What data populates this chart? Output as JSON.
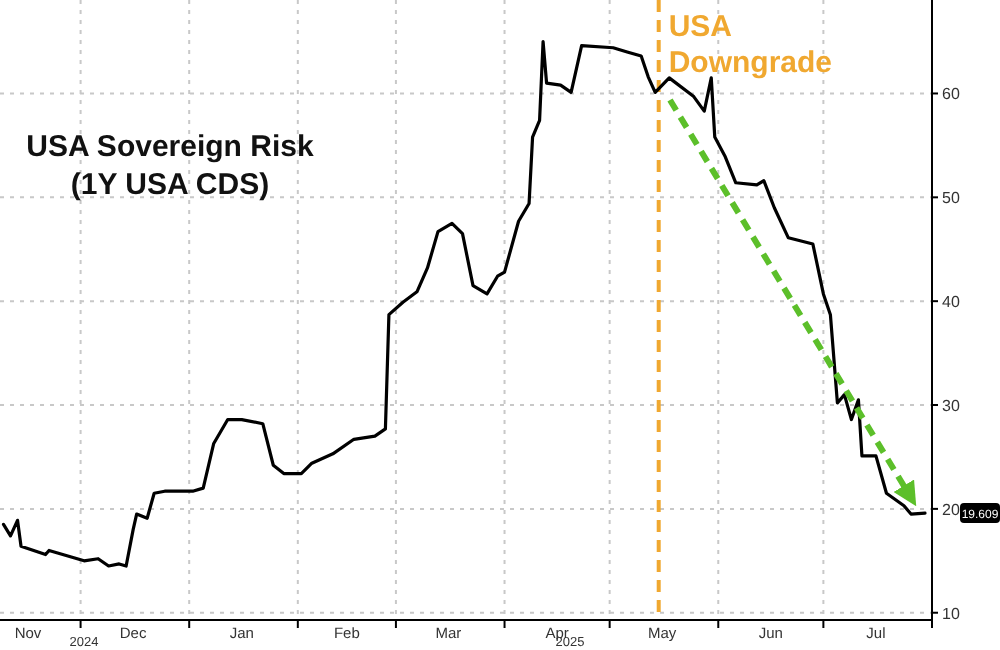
{
  "chart_data": {
    "type": "line",
    "title": "USA Sovereign Risk",
    "subtitle": "(1Y USA CDS)",
    "xlim": [
      "2024-11-08",
      "2025-08-01"
    ],
    "ylim": [
      9.3,
      69
    ],
    "yticks": [
      10,
      20,
      30,
      40,
      50,
      60
    ],
    "xticks": [
      {
        "value": "2024-11-16",
        "label": "Nov"
      },
      {
        "value": "2024-12-01",
        "label": null
      },
      {
        "value": "2024-12-16",
        "label": "Dec"
      },
      {
        "value": "2025-01-01",
        "label": null
      },
      {
        "value": "2025-01-16",
        "label": "Jan"
      },
      {
        "value": "2025-02-01",
        "label": null
      },
      {
        "value": "2025-02-15",
        "label": "Feb"
      },
      {
        "value": "2025-03-01",
        "label": null
      },
      {
        "value": "2025-03-16",
        "label": "Mar"
      },
      {
        "value": "2025-04-01",
        "label": null
      },
      {
        "value": "2025-04-16",
        "label": "Apr"
      },
      {
        "value": "2025-05-01",
        "label": null
      },
      {
        "value": "2025-05-16",
        "label": "May"
      },
      {
        "value": "2025-06-01",
        "label": null
      },
      {
        "value": "2025-06-16",
        "label": "Jun"
      },
      {
        "value": "2025-07-01",
        "label": null
      },
      {
        "value": "2025-07-16",
        "label": "Jul"
      },
      {
        "value": "2025-08-01",
        "label": null
      }
    ],
    "grid": true,
    "ref_lines": [
      {
        "axis": "x",
        "value": "2025-05-15",
        "label": "USA Downgrade",
        "color": "#f0a830",
        "line_style": "dashed"
      }
    ],
    "annotations": [
      "2024",
      "2025",
      "19.609"
    ],
    "series": [
      {
        "color": "#000000",
        "line_style": "solid",
        "marker": "none",
        "x": [
          "2024-11-09",
          "2024-11-11",
          "2024-11-13",
          "2024-11-14",
          "2024-11-21",
          "2024-11-22",
          "2024-12-02",
          "2024-12-06",
          "2024-12-09",
          "2024-12-12",
          "2024-12-14",
          "2024-12-16",
          "2024-12-17",
          "2024-12-20",
          "2024-12-22",
          "2024-12-25",
          "2025-01-02",
          "2025-01-05",
          "2025-01-08",
          "2025-01-12",
          "2025-01-16",
          "2025-01-22",
          "2025-01-25",
          "2025-01-28",
          "2025-02-02",
          "2025-02-05",
          "2025-02-11",
          "2025-02-17",
          "2025-02-23",
          "2025-02-26",
          "2025-02-27",
          "2025-03-03",
          "2025-03-07",
          "2025-03-10",
          "2025-03-13",
          "2025-03-17",
          "2025-03-20",
          "2025-03-23",
          "2025-03-27",
          "2025-03-30",
          "2025-04-01",
          "2025-04-05",
          "2025-04-08",
          "2025-04-09",
          "2025-04-11",
          "2025-04-12",
          "2025-04-13",
          "2025-04-17",
          "2025-04-20",
          "2025-04-23",
          "2025-05-02",
          "2025-05-06",
          "2025-05-10",
          "2025-05-12",
          "2025-05-14",
          "2025-05-18",
          "2025-05-25",
          "2025-05-28",
          "2025-05-30",
          "2025-05-31",
          "2025-06-03",
          "2025-06-06",
          "2025-06-12",
          "2025-06-14",
          "2025-06-17",
          "2025-06-21",
          "2025-06-28",
          "2025-07-01",
          "2025-07-03",
          "2025-07-05",
          "2025-07-07",
          "2025-07-09",
          "2025-07-11",
          "2025-07-12",
          "2025-07-16",
          "2025-07-19",
          "2025-07-24",
          "2025-07-26",
          "2025-07-30"
        ],
        "values": [
          18.5,
          17.4,
          18.9,
          16.4,
          15.6,
          16,
          15,
          15.2,
          14.5,
          14.7,
          14.5,
          18,
          19.5,
          19.1,
          21.5,
          21.7,
          21.7,
          22,
          26.3,
          28.6,
          28.6,
          28.2,
          24.2,
          23.4,
          23.4,
          24.4,
          25.3,
          26.7,
          27,
          27.7,
          38.7,
          39.9,
          40.9,
          43.2,
          46.7,
          47.5,
          46.5,
          41.5,
          40.7,
          42.4,
          42.8,
          47.7,
          49.4,
          55.8,
          57.4,
          65,
          61,
          60.8,
          60.1,
          64.6,
          64.4,
          64,
          63.6,
          61.6,
          60.1,
          61.5,
          59.7,
          58.3,
          61.5,
          55.8,
          53.9,
          51.4,
          51.2,
          51.6,
          49,
          46.1,
          45.5,
          40.7,
          38.7,
          30.2,
          31,
          28.6,
          30.5,
          25.1,
          25.1,
          21.5,
          20.3,
          19.5,
          19.6
        ]
      }
    ]
  }
}
